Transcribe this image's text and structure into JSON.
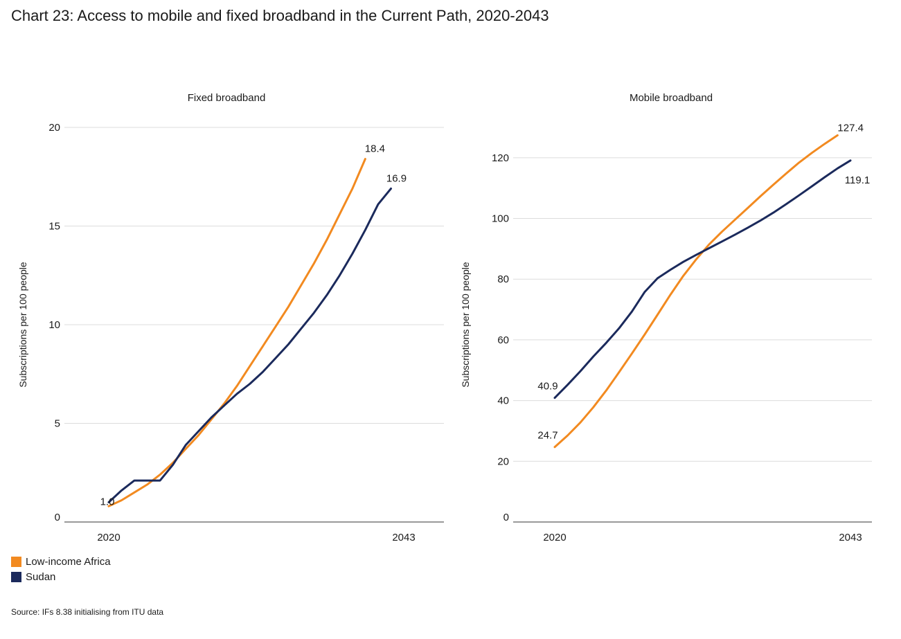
{
  "title": "Chart 23: Access to mobile and fixed broadband in the Current Path, 2020-2043",
  "source": "Source: IFs 8.38 initialising from ITU data",
  "legend": [
    {
      "label": "Low-income Africa",
      "color": "#F28A20"
    },
    {
      "label": "Sudan",
      "color": "#1B2A5C"
    }
  ],
  "chart_data": [
    {
      "type": "line",
      "title": "Fixed broadband",
      "ylabel": "Subscriptions per 100 people",
      "xlabel": "",
      "ylim": [
        0,
        20
      ],
      "yticks": [
        0,
        5,
        10,
        15,
        20
      ],
      "xlim": [
        2020,
        2043
      ],
      "xtick_labels": [
        "2020",
        "2043"
      ],
      "grid": true,
      "series": [
        {
          "name": "Low-income Africa",
          "color": "#F28A20",
          "x": [
            2020,
            2021,
            2022,
            2023,
            2024,
            2025,
            2026,
            2027,
            2028,
            2029,
            2030,
            2031,
            2032,
            2033,
            2034,
            2035,
            2036,
            2037,
            2038,
            2039,
            2040,
            2041,
            2042,
            2043
          ],
          "values": [
            0.8,
            1.1,
            1.5,
            1.9,
            2.4,
            3.0,
            3.7,
            4.4,
            5.2,
            6.0,
            6.9,
            7.9,
            8.9,
            9.9,
            10.9,
            12.0,
            13.1,
            14.3,
            15.6,
            16.9,
            18.4,
            null,
            null,
            null
          ]
        },
        {
          "name": "Sudan",
          "color": "#1B2A5C",
          "x": [
            2020,
            2021,
            2022,
            2023,
            2024,
            2025,
            2026,
            2027,
            2028,
            2029,
            2030,
            2031,
            2032,
            2033,
            2034,
            2035,
            2036,
            2037,
            2038,
            2039,
            2040,
            2041,
            2042,
            2043
          ],
          "values": [
            1.0,
            1.6,
            2.1,
            2.1,
            2.1,
            2.9,
            3.9,
            4.6,
            5.3,
            5.9,
            6.5,
            7.0,
            7.6,
            8.3,
            9.0,
            9.8,
            10.6,
            11.5,
            12.5,
            13.6,
            14.8,
            16.1,
            16.9,
            null
          ]
        }
      ],
      "annotations": [
        {
          "text": "1.0",
          "x": 2020,
          "y": 1.0
        },
        {
          "text": "18.4",
          "x": 2040,
          "y": 18.4
        },
        {
          "text": "16.9",
          "x": 2042,
          "y": 16.9
        }
      ]
    },
    {
      "type": "line",
      "title": "Mobile broadband",
      "ylabel": "Subscriptions per 100 people",
      "xlabel": "",
      "ylim": [
        0,
        130
      ],
      "yticks": [
        0,
        20,
        40,
        60,
        80,
        100,
        120
      ],
      "xlim": [
        2020,
        2043
      ],
      "xtick_labels": [
        "2020",
        "2043"
      ],
      "grid": true,
      "series": [
        {
          "name": "Low-income Africa",
          "color": "#F28A20",
          "x": [
            2020,
            2021,
            2022,
            2023,
            2024,
            2025,
            2026,
            2027,
            2028,
            2029,
            2030,
            2031,
            2032,
            2033,
            2034,
            2035,
            2036,
            2037,
            2038,
            2039,
            2040,
            2041,
            2042,
            2043
          ],
          "values": [
            24.7,
            28.5,
            32.8,
            37.8,
            43.3,
            49.3,
            55.5,
            61.8,
            68.3,
            74.9,
            81.1,
            86.5,
            91.4,
            95.6,
            99.5,
            103.4,
            107.3,
            111.1,
            114.8,
            118.4,
            121.6,
            124.6,
            127.4,
            null
          ]
        },
        {
          "name": "Sudan",
          "color": "#1B2A5C",
          "x": [
            2020,
            2021,
            2022,
            2023,
            2024,
            2025,
            2026,
            2027,
            2028,
            2029,
            2030,
            2031,
            2032,
            2033,
            2034,
            2035,
            2036,
            2037,
            2038,
            2039,
            2040,
            2041,
            2042,
            2043
          ],
          "values": [
            40.9,
            45.2,
            49.7,
            54.5,
            59.0,
            63.8,
            69.3,
            75.8,
            80.3,
            83.1,
            85.7,
            88.0,
            90.2,
            92.4,
            94.6,
            96.9,
            99.3,
            101.9,
            104.7,
            107.6,
            110.6,
            113.6,
            116.5,
            119.1
          ]
        }
      ],
      "annotations": [
        {
          "text": "40.9",
          "x": 2020,
          "y": 40.9
        },
        {
          "text": "24.7",
          "x": 2020,
          "y": 24.7
        },
        {
          "text": "127.4",
          "x": 2042,
          "y": 127.4
        },
        {
          "text": "119.1",
          "x": 2043,
          "y": 119.1
        }
      ]
    }
  ]
}
